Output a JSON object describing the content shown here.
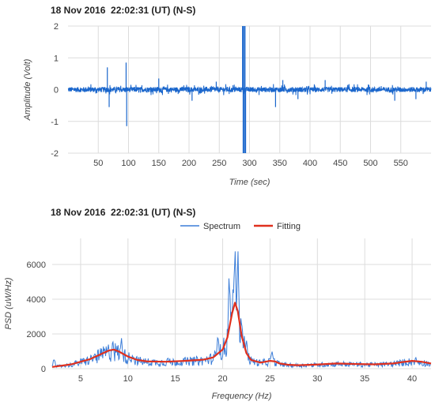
{
  "chart_data": [
    {
      "type": "line",
      "title": "18 Nov 2016  22:02:31 (UT) (N-S)",
      "xlabel": "Time (sec)",
      "ylabel": "Amplitude (Volt)",
      "xlim": [
        0,
        600
      ],
      "ylim": [
        -2,
        2
      ],
      "x_ticks": [
        50,
        100,
        150,
        200,
        250,
        300,
        350,
        400,
        450,
        500,
        550
      ],
      "y_ticks": [
        -2,
        -1,
        0,
        1,
        2
      ],
      "grid": true,
      "series": [
        {
          "color": "#1a66cc",
          "baseline_noise": 0.08,
          "features": [
            {
              "x": 65,
              "y": 0.7
            },
            {
              "x": 68,
              "y": -0.55
            },
            {
              "x": 96,
              "y": 0.85
            },
            {
              "x": 97,
              "y": -1.15
            },
            {
              "x": 150,
              "y": 0.35
            },
            {
              "x": 205,
              "y": -0.35
            },
            {
              "x": 245,
              "y": 0.25
            },
            {
              "x": 289,
              "y": 2.0
            },
            {
              "x": 290,
              "y": -2.0
            },
            {
              "x": 292,
              "y": 2.0
            },
            {
              "x": 293,
              "y": -2.0
            },
            {
              "x": 343,
              "y": -0.55
            },
            {
              "x": 355,
              "y": 0.3
            },
            {
              "x": 380,
              "y": -0.3
            },
            {
              "x": 425,
              "y": 0.3
            },
            {
              "x": 540,
              "y": -0.35
            },
            {
              "x": 575,
              "y": -0.3
            },
            {
              "x": 592,
              "y": 0.25
            }
          ]
        }
      ]
    },
    {
      "type": "line",
      "title": "18 Nov 2016  22:02:31 (UT) (N-S)",
      "xlabel": "Frequency (Hz)",
      "ylabel": "PSD (uW/Hz)",
      "xlim": [
        2,
        42
      ],
      "ylim": [
        0,
        7500
      ],
      "x_ticks": [
        5,
        10,
        15,
        20,
        25,
        30,
        35,
        40
      ],
      "y_ticks": [
        0,
        2000,
        4000,
        6000
      ],
      "grid": true,
      "legend": "top-center",
      "series": [
        {
          "name": "Spectrum",
          "color": "#3b7dd8",
          "peaks": [
            {
              "x": 2.2,
              "y": 600
            },
            {
              "x": 6.5,
              "y": 900
            },
            {
              "x": 7.5,
              "y": 1200
            },
            {
              "x": 8.4,
              "y": 1600
            },
            {
              "x": 9.3,
              "y": 1800
            },
            {
              "x": 10.5,
              "y": 800
            },
            {
              "x": 14.2,
              "y": 700
            },
            {
              "x": 18.0,
              "y": 500
            },
            {
              "x": 19.5,
              "y": 2000
            },
            {
              "x": 20.7,
              "y": 5600
            },
            {
              "x": 21.0,
              "y": 3500
            },
            {
              "x": 21.3,
              "y": 7500
            },
            {
              "x": 21.6,
              "y": 6900
            },
            {
              "x": 22.0,
              "y": 3200
            },
            {
              "x": 22.5,
              "y": 1800
            },
            {
              "x": 25.2,
              "y": 1100
            },
            {
              "x": 29.0,
              "y": 300
            },
            {
              "x": 34.0,
              "y": 300
            },
            {
              "x": 40.4,
              "y": 700
            }
          ]
        },
        {
          "name": "Fitting",
          "color": "#e0301e",
          "x": [
            2,
            4,
            6,
            7,
            8,
            8.5,
            9,
            10,
            11,
            12,
            14,
            16,
            18,
            19,
            20,
            20.5,
            21,
            21.3,
            21.6,
            22,
            22.5,
            23,
            24,
            25,
            25.5,
            26,
            27,
            28,
            30,
            32,
            34,
            36,
            38,
            39,
            40,
            41,
            42
          ],
          "y": [
            100,
            250,
            550,
            800,
            1050,
            1100,
            1000,
            700,
            500,
            420,
            400,
            450,
            520,
            650,
            1100,
            1800,
            3200,
            3800,
            3300,
            1900,
            900,
            500,
            350,
            450,
            420,
            300,
            220,
            200,
            240,
            300,
            270,
            250,
            300,
            380,
            450,
            400,
            300
          ]
        }
      ]
    }
  ]
}
